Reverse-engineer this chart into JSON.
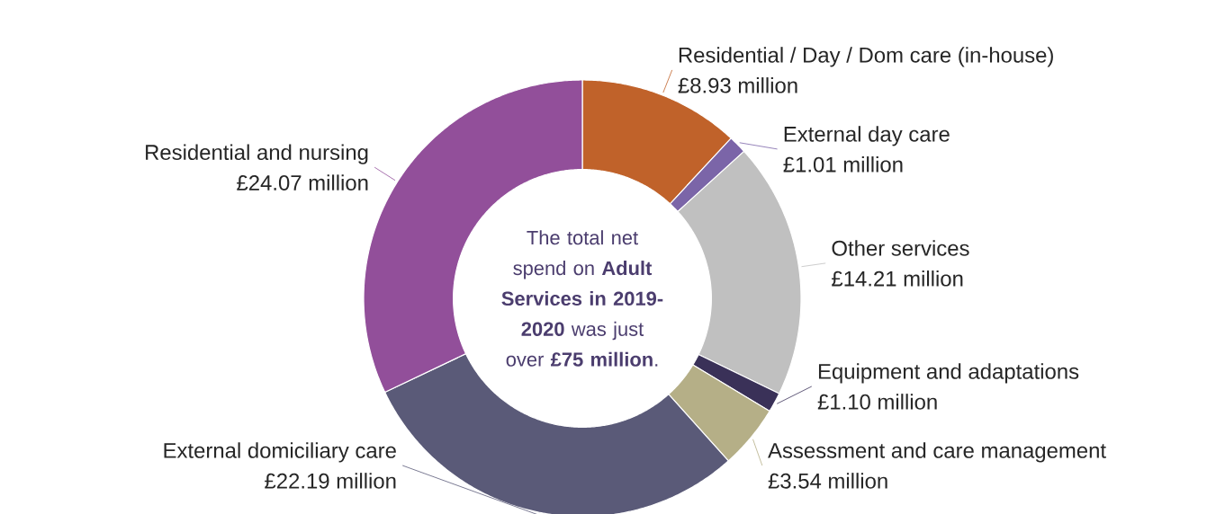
{
  "chart_data": {
    "type": "donut",
    "categories": [
      "Residential / Day / Dom care (in-house)",
      "External day care",
      "Other services",
      "Equipment and adaptations",
      "Assessment and care management",
      "External domiciliary care",
      "Residential and nursing"
    ],
    "values": [
      8.93,
      1.01,
      14.21,
      1.1,
      3.54,
      22.19,
      24.07
    ],
    "value_labels": [
      "£8.93 million",
      "£1.01 million",
      "£14.21 million",
      "£1.10 million",
      "£3.54 million",
      "£22.19 million",
      "£24.07 million"
    ],
    "colors": [
      "#c0622a",
      "#7b65a8",
      "#c0c0c0",
      "#3a3158",
      "#b5af87",
      "#5a5a78",
      "#924f9a"
    ],
    "annotations": [
      "The total net spend on **Adult Services in 2019-2020** was just over **£75 million**."
    ]
  }
}
